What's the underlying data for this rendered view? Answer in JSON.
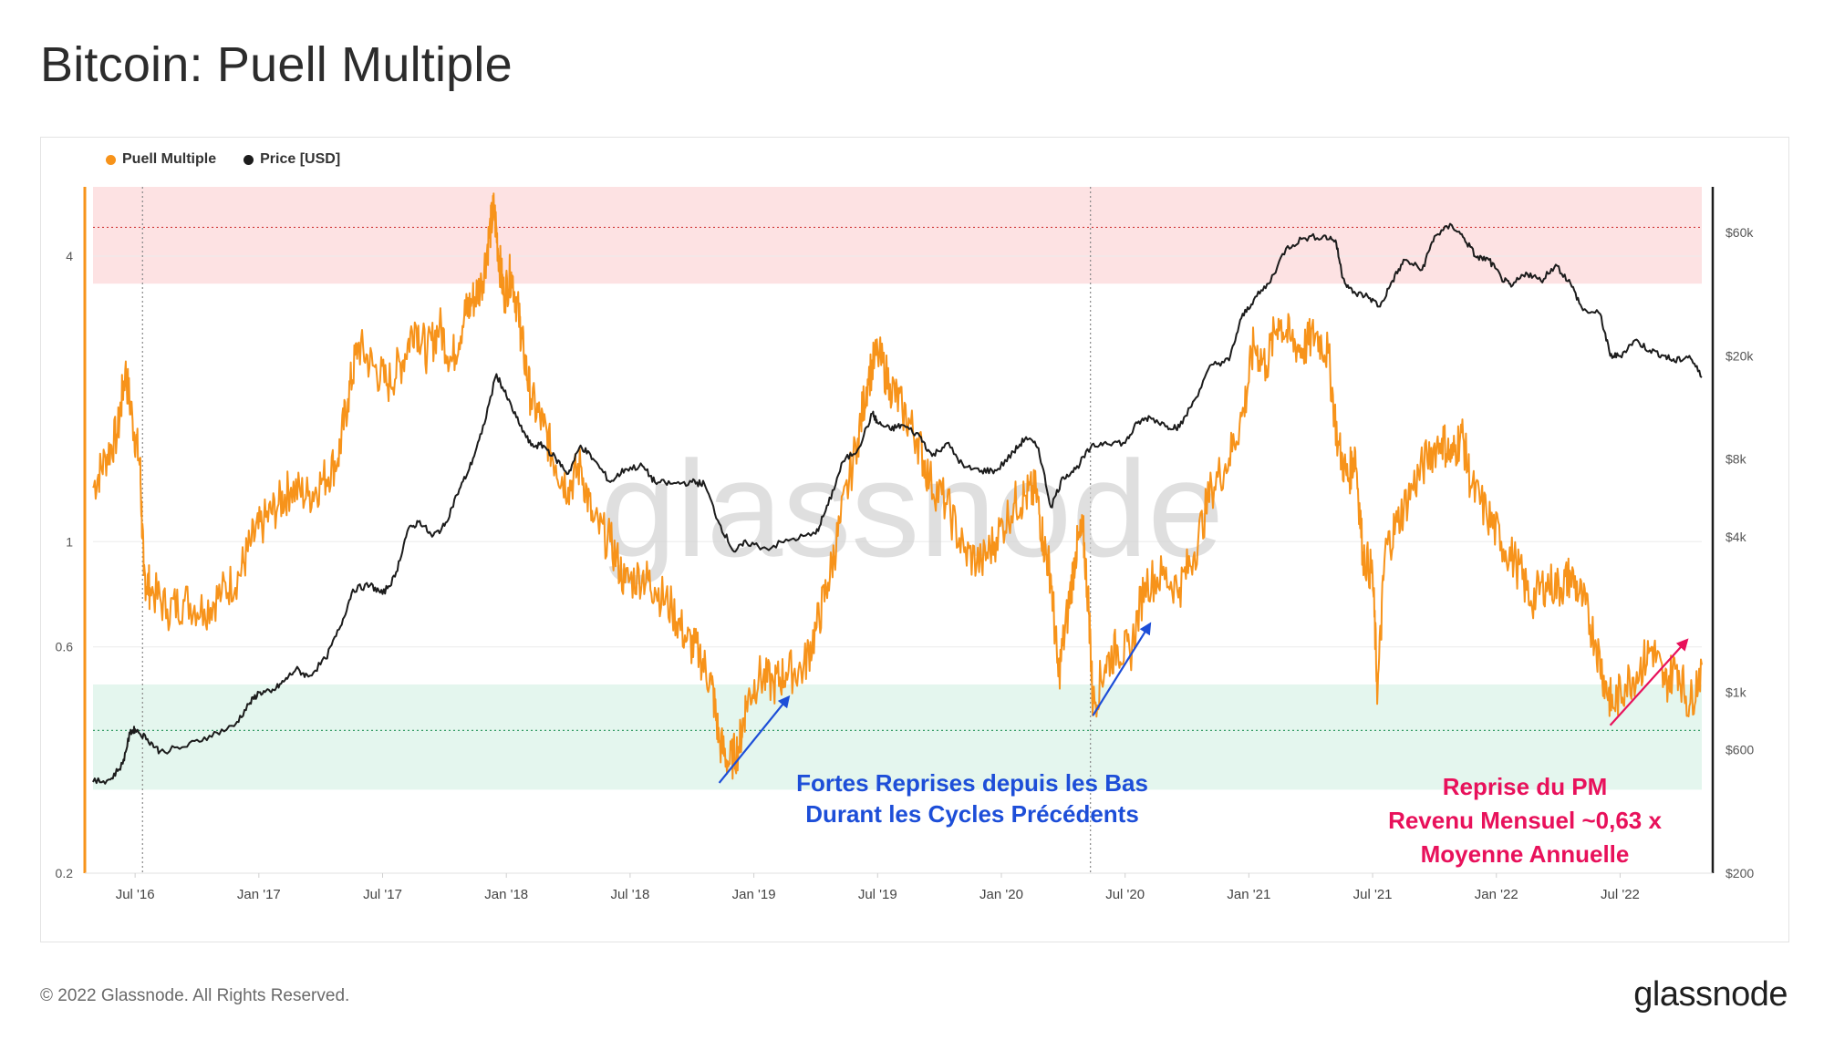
{
  "page": {
    "title": "Bitcoin: Puell Multiple",
    "copyright": "© 2022 Glassnode. All Rights Reserved.",
    "logo": "glassnode",
    "watermark": "glassnode"
  },
  "colors": {
    "puell": "#f7931a",
    "price": "#1c1c1c",
    "red_band": "#fde2e3",
    "green_band": "#e4f6ee",
    "annotation_blue": "#1d4ed8",
    "annotation_pink": "#e8115b"
  },
  "chart_data": {
    "type": "line",
    "title": "Bitcoin: Puell Multiple",
    "legend": [
      {
        "name": "Puell Multiple",
        "color": "#f7931a"
      },
      {
        "name": "Price [USD]",
        "color": "#1c1c1c"
      }
    ],
    "x_range": [
      2016.33,
      2022.83
    ],
    "x_ticks": [
      {
        "label": "Jul '16",
        "x": 2016.5
      },
      {
        "label": "Jan '17",
        "x": 2017.0
      },
      {
        "label": "Jul '17",
        "x": 2017.5
      },
      {
        "label": "Jan '18",
        "x": 2018.0
      },
      {
        "label": "Jul '18",
        "x": 2018.5
      },
      {
        "label": "Jan '19",
        "x": 2019.0
      },
      {
        "label": "Jul '19",
        "x": 2019.5
      },
      {
        "label": "Jan '20",
        "x": 2020.0
      },
      {
        "label": "Jul '20",
        "x": 2020.5
      },
      {
        "label": "Jan '21",
        "x": 2021.0
      },
      {
        "label": "Jul '21",
        "x": 2021.5
      },
      {
        "label": "Jan '22",
        "x": 2022.0
      },
      {
        "label": "Jul '22",
        "x": 2022.5
      }
    ],
    "halving_dates": [
      2016.53,
      2020.36
    ],
    "y_left": {
      "scale": "log",
      "range": [
        0.2,
        5.6
      ],
      "ticks": [
        {
          "label": "4",
          "value": 4
        },
        {
          "label": "1",
          "value": 1
        },
        {
          "label": "0.6",
          "value": 0.6
        },
        {
          "label": "0.2",
          "value": 0.2
        }
      ]
    },
    "y_right": {
      "scale": "log",
      "range": [
        200,
        90000
      ],
      "ticks": [
        {
          "label": "$60k",
          "value": 60000
        },
        {
          "label": "$20k",
          "value": 20000
        },
        {
          "label": "$8k",
          "value": 8000
        },
        {
          "label": "$4k",
          "value": 4000
        },
        {
          "label": "$1k",
          "value": 1000
        },
        {
          "label": "$600",
          "value": 600
        },
        {
          "label": "$200",
          "value": 200
        }
      ]
    },
    "bands": [
      {
        "name": "overvalued",
        "from": 3.5,
        "to": 5.6
      },
      {
        "name": "undervalued",
        "from": 0.3,
        "to": 0.5
      }
    ],
    "reference_lines": [
      4.6,
      0.4
    ],
    "series": [
      {
        "name": "Puell Multiple",
        "axis": "left",
        "points": [
          [
            2016.33,
            1.3
          ],
          [
            2016.38,
            1.5
          ],
          [
            2016.43,
            1.7
          ],
          [
            2016.46,
            2.3
          ],
          [
            2016.49,
            1.8
          ],
          [
            2016.52,
            1.45
          ],
          [
            2016.535,
            0.85
          ],
          [
            2016.56,
            0.8
          ],
          [
            2016.63,
            0.72
          ],
          [
            2016.7,
            0.75
          ],
          [
            2016.78,
            0.72
          ],
          [
            2016.85,
            0.78
          ],
          [
            2016.92,
            0.85
          ],
          [
            2016.97,
            1.0
          ],
          [
            2017.02,
            1.1
          ],
          [
            2017.08,
            1.2
          ],
          [
            2017.13,
            1.3
          ],
          [
            2017.2,
            1.25
          ],
          [
            2017.26,
            1.35
          ],
          [
            2017.32,
            1.5
          ],
          [
            2017.36,
            2.0
          ],
          [
            2017.4,
            2.6
          ],
          [
            2017.46,
            2.35
          ],
          [
            2017.52,
            2.15
          ],
          [
            2017.58,
            2.4
          ],
          [
            2017.63,
            2.9
          ],
          [
            2017.68,
            2.5
          ],
          [
            2017.73,
            2.85
          ],
          [
            2017.78,
            2.4
          ],
          [
            2017.83,
            3.0
          ],
          [
            2017.86,
            3.2
          ],
          [
            2017.9,
            3.5
          ],
          [
            2017.93,
            4.4
          ],
          [
            2017.95,
            5.05
          ],
          [
            2017.97,
            4.0
          ],
          [
            2017.99,
            3.3
          ],
          [
            2018.02,
            3.7
          ],
          [
            2018.05,
            3.0
          ],
          [
            2018.07,
            2.5
          ],
          [
            2018.1,
            2.0
          ],
          [
            2018.15,
            1.75
          ],
          [
            2018.2,
            1.45
          ],
          [
            2018.25,
            1.3
          ],
          [
            2018.3,
            1.45
          ],
          [
            2018.35,
            1.1
          ],
          [
            2018.42,
            1.0
          ],
          [
            2018.48,
            0.82
          ],
          [
            2018.55,
            0.85
          ],
          [
            2018.6,
            0.8
          ],
          [
            2018.67,
            0.72
          ],
          [
            2018.73,
            0.62
          ],
          [
            2018.78,
            0.58
          ],
          [
            2018.83,
            0.5
          ],
          [
            2018.86,
            0.38
          ],
          [
            2018.9,
            0.34
          ],
          [
            2018.94,
            0.37
          ],
          [
            2018.97,
            0.46
          ],
          [
            2019.02,
            0.52
          ],
          [
            2019.08,
            0.5
          ],
          [
            2019.13,
            0.53
          ],
          [
            2019.2,
            0.54
          ],
          [
            2019.25,
            0.65
          ],
          [
            2019.3,
            0.82
          ],
          [
            2019.35,
            1.1
          ],
          [
            2019.42,
            1.65
          ],
          [
            2019.46,
            2.2
          ],
          [
            2019.5,
            2.5
          ],
          [
            2019.55,
            2.15
          ],
          [
            2019.6,
            1.9
          ],
          [
            2019.66,
            1.65
          ],
          [
            2019.71,
            1.35
          ],
          [
            2019.78,
            1.2
          ],
          [
            2019.85,
            0.95
          ],
          [
            2019.92,
            0.9
          ],
          [
            2019.98,
            1.02
          ],
          [
            2020.05,
            1.2
          ],
          [
            2020.1,
            1.25
          ],
          [
            2020.14,
            1.28
          ],
          [
            2020.17,
            1.0
          ],
          [
            2020.2,
            0.85
          ],
          [
            2020.23,
            0.52
          ],
          [
            2020.27,
            0.72
          ],
          [
            2020.3,
            0.95
          ],
          [
            2020.33,
            1.05
          ],
          [
            2020.355,
            0.7
          ],
          [
            2020.37,
            0.45
          ],
          [
            2020.42,
            0.55
          ],
          [
            2020.47,
            0.6
          ],
          [
            2020.52,
            0.58
          ],
          [
            2020.58,
            0.82
          ],
          [
            2020.65,
            0.85
          ],
          [
            2020.72,
            0.8
          ],
          [
            2020.78,
            0.95
          ],
          [
            2020.85,
            1.3
          ],
          [
            2020.92,
            1.5
          ],
          [
            2020.98,
            1.9
          ],
          [
            2021.02,
            2.6
          ],
          [
            2021.07,
            2.35
          ],
          [
            2021.12,
            2.95
          ],
          [
            2021.17,
            2.65
          ],
          [
            2021.22,
            2.55
          ],
          [
            2021.27,
            2.75
          ],
          [
            2021.32,
            2.5
          ],
          [
            2021.36,
            1.6
          ],
          [
            2021.4,
            1.35
          ],
          [
            2021.43,
            1.55
          ],
          [
            2021.46,
            0.95
          ],
          [
            2021.5,
            0.85
          ],
          [
            2021.52,
            0.48
          ],
          [
            2021.55,
            0.95
          ],
          [
            2021.6,
            1.1
          ],
          [
            2021.66,
            1.3
          ],
          [
            2021.72,
            1.5
          ],
          [
            2021.78,
            1.65
          ],
          [
            2021.82,
            1.5
          ],
          [
            2021.86,
            1.7
          ],
          [
            2021.9,
            1.3
          ],
          [
            2021.96,
            1.15
          ],
          [
            2022.02,
            1.0
          ],
          [
            2022.08,
            0.9
          ],
          [
            2022.14,
            0.75
          ],
          [
            2022.2,
            0.82
          ],
          [
            2022.26,
            0.8
          ],
          [
            2022.3,
            0.85
          ],
          [
            2022.35,
            0.75
          ],
          [
            2022.4,
            0.62
          ],
          [
            2022.44,
            0.5
          ],
          [
            2022.47,
            0.45
          ],
          [
            2022.52,
            0.5
          ],
          [
            2022.58,
            0.54
          ],
          [
            2022.63,
            0.6
          ],
          [
            2022.68,
            0.5
          ],
          [
            2022.73,
            0.55
          ],
          [
            2022.78,
            0.45
          ],
          [
            2022.83,
            0.55
          ]
        ]
      },
      {
        "name": "Price [USD]",
        "axis": "right",
        "points": [
          [
            2016.33,
            450
          ],
          [
            2016.4,
            460
          ],
          [
            2016.45,
            530
          ],
          [
            2016.48,
            700
          ],
          [
            2016.5,
            720
          ],
          [
            2016.55,
            660
          ],
          [
            2016.6,
            590
          ],
          [
            2016.7,
            615
          ],
          [
            2016.8,
            680
          ],
          [
            2016.9,
            740
          ],
          [
            2016.96,
            900
          ],
          [
            2017.0,
            1000
          ],
          [
            2017.05,
            1000
          ],
          [
            2017.1,
            1100
          ],
          [
            2017.15,
            1230
          ],
          [
            2017.2,
            1150
          ],
          [
            2017.27,
            1350
          ],
          [
            2017.33,
            1800
          ],
          [
            2017.38,
            2500
          ],
          [
            2017.45,
            2600
          ],
          [
            2017.5,
            2400
          ],
          [
            2017.55,
            2800
          ],
          [
            2017.6,
            4200
          ],
          [
            2017.65,
            4600
          ],
          [
            2017.7,
            4000
          ],
          [
            2017.75,
            4400
          ],
          [
            2017.8,
            5800
          ],
          [
            2017.85,
            7300
          ],
          [
            2017.9,
            10000
          ],
          [
            2017.96,
            17000
          ],
          [
            2018.0,
            14000
          ],
          [
            2018.05,
            11000
          ],
          [
            2018.1,
            9000
          ],
          [
            2018.15,
            9000
          ],
          [
            2018.2,
            8000
          ],
          [
            2018.25,
            7000
          ],
          [
            2018.3,
            9000
          ],
          [
            2018.35,
            8000
          ],
          [
            2018.42,
            6500
          ],
          [
            2018.48,
            7300
          ],
          [
            2018.55,
            7500
          ],
          [
            2018.6,
            6500
          ],
          [
            2018.67,
            6400
          ],
          [
            2018.75,
            6500
          ],
          [
            2018.8,
            6400
          ],
          [
            2018.86,
            4500
          ],
          [
            2018.92,
            3500
          ],
          [
            2018.97,
            3800
          ],
          [
            2019.05,
            3600
          ],
          [
            2019.15,
            3900
          ],
          [
            2019.25,
            4100
          ],
          [
            2019.3,
            5300
          ],
          [
            2019.36,
            7800
          ],
          [
            2019.42,
            8700
          ],
          [
            2019.48,
            12000
          ],
          [
            2019.5,
            11000
          ],
          [
            2019.55,
            10400
          ],
          [
            2019.6,
            10800
          ],
          [
            2019.67,
            9800
          ],
          [
            2019.72,
            8200
          ],
          [
            2019.78,
            9200
          ],
          [
            2019.85,
            7400
          ],
          [
            2019.92,
            7200
          ],
          [
            2019.98,
            7200
          ],
          [
            2020.05,
            8500
          ],
          [
            2020.1,
            9700
          ],
          [
            2020.15,
            8800
          ],
          [
            2020.2,
            5200
          ],
          [
            2020.25,
            6800
          ],
          [
            2020.3,
            7300
          ],
          [
            2020.36,
            8800
          ],
          [
            2020.42,
            9300
          ],
          [
            2020.5,
            9200
          ],
          [
            2020.55,
            11000
          ],
          [
            2020.6,
            11600
          ],
          [
            2020.67,
            10700
          ],
          [
            2020.72,
            10600
          ],
          [
            2020.78,
            13500
          ],
          [
            2020.85,
            18500
          ],
          [
            2020.92,
            19200
          ],
          [
            2020.97,
            28000
          ],
          [
            2021.02,
            33000
          ],
          [
            2021.08,
            38000
          ],
          [
            2021.15,
            52000
          ],
          [
            2021.22,
            57000
          ],
          [
            2021.3,
            58000
          ],
          [
            2021.35,
            56000
          ],
          [
            2021.38,
            40000
          ],
          [
            2021.42,
            35000
          ],
          [
            2021.48,
            34000
          ],
          [
            2021.53,
            31000
          ],
          [
            2021.58,
            39000
          ],
          [
            2021.63,
            47000
          ],
          [
            2021.7,
            43000
          ],
          [
            2021.75,
            58000
          ],
          [
            2021.82,
            64000
          ],
          [
            2021.87,
            57000
          ],
          [
            2021.92,
            48000
          ],
          [
            2021.97,
            47000
          ],
          [
            2022.02,
            40000
          ],
          [
            2022.06,
            37000
          ],
          [
            2022.12,
            42000
          ],
          [
            2022.18,
            39000
          ],
          [
            2022.24,
            45000
          ],
          [
            2022.3,
            38000
          ],
          [
            2022.35,
            30000
          ],
          [
            2022.42,
            29000
          ],
          [
            2022.46,
            20000
          ],
          [
            2022.5,
            20000
          ],
          [
            2022.56,
            23000
          ],
          [
            2022.62,
            21000
          ],
          [
            2022.68,
            20000
          ],
          [
            2022.72,
            19000
          ],
          [
            2022.78,
            20000
          ],
          [
            2022.83,
            16500
          ]
        ]
      }
    ],
    "annotations": [
      {
        "text": [
          "Fortes Reprises depuis les Bas",
          "Durant les Cycles Précédents"
        ],
        "color": "blue"
      },
      {
        "text": [
          "Reprise du PM",
          "Revenu Mensuel ~0,63 x",
          "Moyenne Annuelle"
        ],
        "color": "pink"
      }
    ],
    "arrows": [
      {
        "from": [
          2018.86,
          0.31
        ],
        "to": [
          2019.14,
          0.47
        ],
        "color": "blue"
      },
      {
        "from": [
          2020.37,
          0.43
        ],
        "to": [
          2020.6,
          0.67
        ],
        "color": "blue"
      },
      {
        "from": [
          2022.46,
          0.41
        ],
        "to": [
          2022.77,
          0.62
        ],
        "color": "pink"
      }
    ]
  }
}
